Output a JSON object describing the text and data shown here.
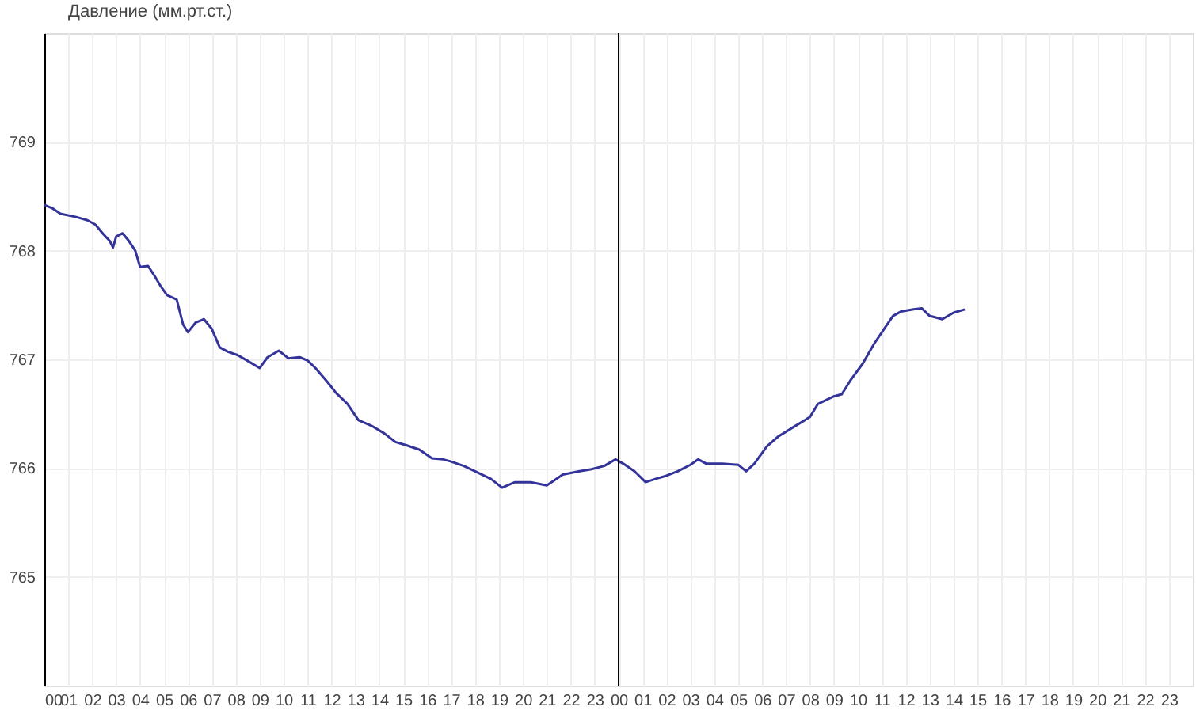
{
  "chart_data": {
    "type": "line",
    "x": [
      0,
      0.33,
      0.67,
      1.33,
      1.8,
      2.13,
      2.47,
      2.73,
      2.87,
      3,
      3.27,
      3.53,
      3.8,
      4,
      4.33,
      4.6,
      4.87,
      5.13,
      5.53,
      5.8,
      6,
      6.33,
      6.67,
      7,
      7.33,
      7.67,
      8.07,
      8.47,
      9,
      9.33,
      9.8,
      10.2,
      10.67,
      11,
      11.33,
      11.8,
      12.2,
      12.67,
      13.13,
      13.67,
      14.2,
      14.67,
      15.13,
      15.67,
      16.2,
      16.67,
      17,
      17.53,
      18,
      18.67,
      19.13,
      19.67,
      20.33,
      21,
      21.67,
      22.33,
      22.87,
      23.4,
      23.87,
      24.2,
      24.67,
      25.13,
      25.53,
      26,
      26.47,
      27,
      27.33,
      27.67,
      28.33,
      29,
      29.33,
      29.67,
      30.2,
      30.67,
      31.33,
      32,
      32.33,
      33,
      33.33,
      33.67,
      34.2,
      34.67,
      35.13,
      35.47,
      35.8,
      36.33,
      36.67,
      37,
      37.53,
      38,
      38.47
    ],
    "series": [
      {
        "name": "Давление (мм.рт.ст.)",
        "color": "#333399",
        "values": [
          768.42,
          768.39,
          768.34,
          768.31,
          768.28,
          768.24,
          768.15,
          768.09,
          768.03,
          768.13,
          768.16,
          768.09,
          768.0,
          767.85,
          767.86,
          767.77,
          767.67,
          767.59,
          767.55,
          767.32,
          767.25,
          767.34,
          767.37,
          767.28,
          767.11,
          767.07,
          767.04,
          766.99,
          766.92,
          767.02,
          767.08,
          767.01,
          767.02,
          766.99,
          766.92,
          766.8,
          766.69,
          766.59,
          766.44,
          766.39,
          766.32,
          766.24,
          766.21,
          766.17,
          766.09,
          766.08,
          766.06,
          766.02,
          765.97,
          765.9,
          765.82,
          765.87,
          765.87,
          765.84,
          765.94,
          765.97,
          765.99,
          766.02,
          766.08,
          766.04,
          765.97,
          765.87,
          765.9,
          765.93,
          765.97,
          766.03,
          766.08,
          766.04,
          766.04,
          766.03,
          765.97,
          766.04,
          766.2,
          766.29,
          766.38,
          766.47,
          766.59,
          766.66,
          766.68,
          766.8,
          766.96,
          767.14,
          767.29,
          767.4,
          767.44,
          767.46,
          767.47,
          767.4,
          767.37,
          767.43,
          767.46
        ]
      }
    ],
    "xlim": [
      0,
      48
    ],
    "xticks": [
      {
        "value": 0,
        "label": "00"
      },
      {
        "value": 1,
        "label": "01"
      },
      {
        "value": 2,
        "label": "02"
      },
      {
        "value": 3,
        "label": "03"
      },
      {
        "value": 4,
        "label": "04"
      },
      {
        "value": 5,
        "label": "05"
      },
      {
        "value": 6,
        "label": "06"
      },
      {
        "value": 7,
        "label": "07"
      },
      {
        "value": 8,
        "label": "08"
      },
      {
        "value": 9,
        "label": "09"
      },
      {
        "value": 10,
        "label": "10"
      },
      {
        "value": 11,
        "label": "11"
      },
      {
        "value": 12,
        "label": "12"
      },
      {
        "value": 13,
        "label": "13"
      },
      {
        "value": 14,
        "label": "14"
      },
      {
        "value": 15,
        "label": "15"
      },
      {
        "value": 16,
        "label": "16"
      },
      {
        "value": 17,
        "label": "17"
      },
      {
        "value": 18,
        "label": "18"
      },
      {
        "value": 19,
        "label": "19"
      },
      {
        "value": 20,
        "label": "20"
      },
      {
        "value": 21,
        "label": "21"
      },
      {
        "value": 22,
        "label": "22"
      },
      {
        "value": 23,
        "label": "23"
      },
      {
        "value": 24,
        "label": "00"
      },
      {
        "value": 25,
        "label": "01"
      },
      {
        "value": 26,
        "label": "02"
      },
      {
        "value": 27,
        "label": "03"
      },
      {
        "value": 28,
        "label": "04"
      },
      {
        "value": 29,
        "label": "05"
      },
      {
        "value": 30,
        "label": "06"
      },
      {
        "value": 31,
        "label": "07"
      },
      {
        "value": 32,
        "label": "08"
      },
      {
        "value": 33,
        "label": "09"
      },
      {
        "value": 34,
        "label": "10"
      },
      {
        "value": 35,
        "label": "11"
      },
      {
        "value": 36,
        "label": "12"
      },
      {
        "value": 37,
        "label": "13"
      },
      {
        "value": 38,
        "label": "14"
      },
      {
        "value": 39,
        "label": "15"
      },
      {
        "value": 40,
        "label": "16"
      },
      {
        "value": 41,
        "label": "17"
      },
      {
        "value": 42,
        "label": "18"
      },
      {
        "value": 43,
        "label": "19"
      },
      {
        "value": 44,
        "label": "20"
      },
      {
        "value": 45,
        "label": "21"
      },
      {
        "value": 46,
        "label": "22"
      },
      {
        "value": 47,
        "label": "23"
      }
    ],
    "ylim": [
      764,
      770
    ],
    "yticks": [
      765,
      766,
      767,
      768,
      769
    ],
    "ref_lines": [
      {
        "axis": "x",
        "value": 24,
        "color": "#000000"
      }
    ],
    "grid": true,
    "legend": "top left",
    "line_style": "solid",
    "marker": "none"
  }
}
